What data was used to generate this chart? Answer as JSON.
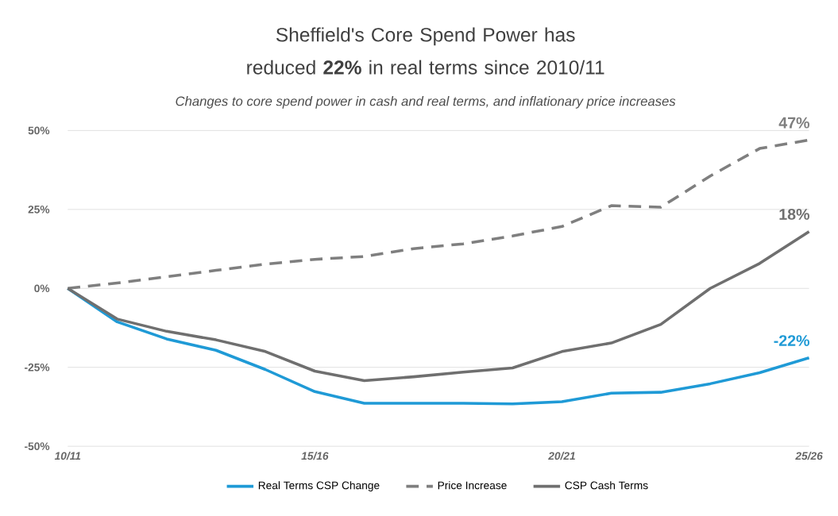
{
  "chart_data": {
    "type": "line",
    "title": "Sheffield's Core Spend Power has reduced **22%** in real terms since 2010/11",
    "subtitle": "Changes to core spend power in cash and real terms, and inflationary price increases",
    "categories": [
      "10/11",
      null,
      null,
      null,
      null,
      "15/16",
      null,
      null,
      null,
      null,
      "20/21",
      null,
      null,
      null,
      null,
      "25/26"
    ],
    "series": [
      {
        "name": "Real Terms CSP Change",
        "color": "#1f9ad6",
        "line_style": "solid",
        "values": [
          0,
          -10.6,
          -16,
          -19.6,
          -25.7,
          -32.7,
          -36.4,
          -36.4,
          -36.4,
          -36.6,
          -35.9,
          -33.2,
          -32.9,
          -30.2,
          -26.7,
          -22
        ]
      },
      {
        "name": "Price Increase",
        "color": "#7f7f7f",
        "line_style": "dashed",
        "values": [
          0,
          1.7,
          3.7,
          5.7,
          7.7,
          9.2,
          10.1,
          12.6,
          14.1,
          16.6,
          19.6,
          26.2,
          25.7,
          35.6,
          44.3,
          47
        ]
      },
      {
        "name": "CSP Cash Terms",
        "color": "#6f6f6f",
        "line_style": "solid",
        "values": [
          0,
          -9.7,
          -13.6,
          -16.3,
          -20,
          -26.2,
          -29.2,
          -28,
          -26.5,
          -25.2,
          -20,
          -17.3,
          -11.4,
          0,
          7.9,
          18
        ]
      }
    ],
    "ylim": [
      -50,
      50
    ],
    "yticks": [
      {
        "value": -50,
        "label": "-50%"
      },
      {
        "value": -25,
        "label": "-25%"
      },
      {
        "value": 0,
        "label": "0%"
      },
      {
        "value": 25,
        "label": "25%"
      },
      {
        "value": 50,
        "label": "50%"
      }
    ],
    "annotations": [
      {
        "text": "47%",
        "x": "25/26",
        "y": 47
      },
      {
        "text": "18%",
        "x": "25/26",
        "y": 18
      },
      {
        "text": "-22%",
        "x": "25/26",
        "y": -22
      }
    ],
    "grid": "y",
    "legend": "bottom",
    "marker": "none"
  }
}
